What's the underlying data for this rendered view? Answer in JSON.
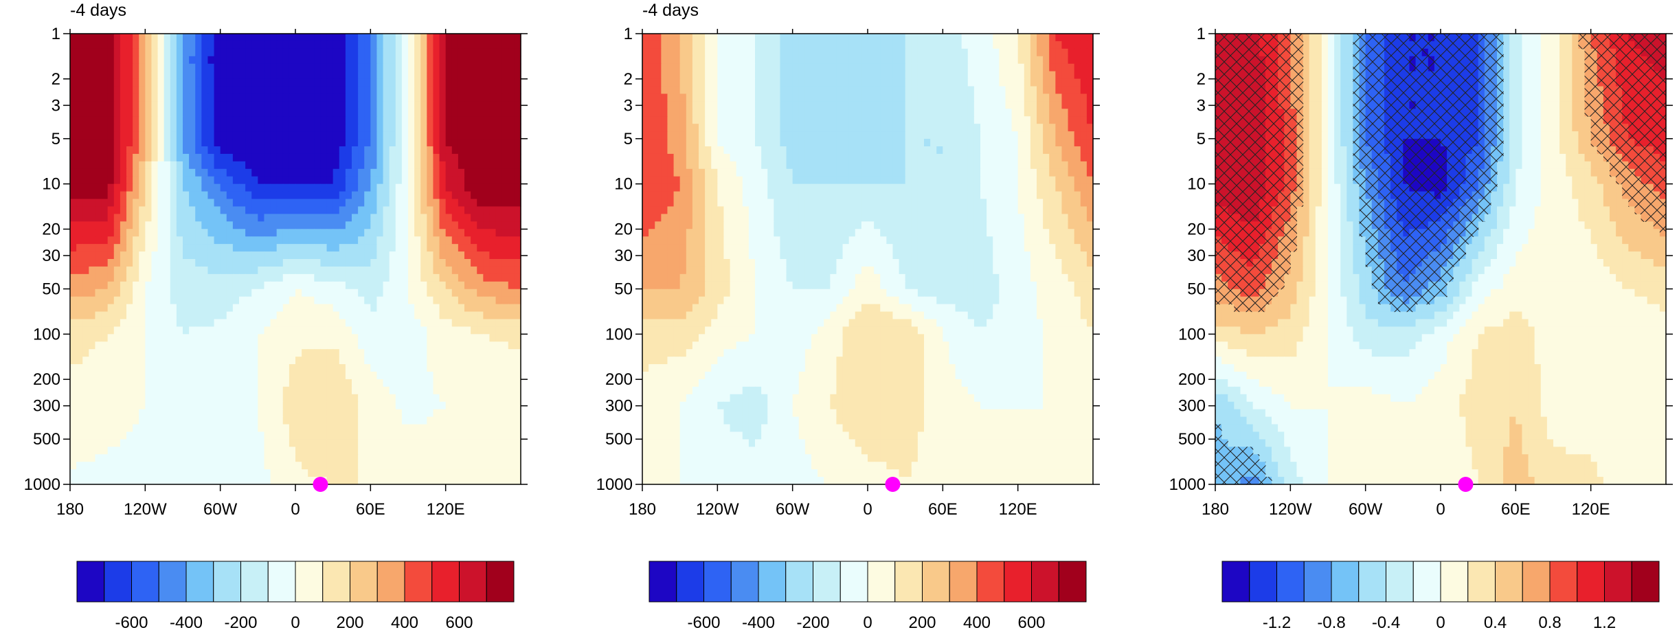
{
  "chart_data": [
    {
      "type": "heatmap",
      "title": "-4 days",
      "x_ticks": [
        "180",
        "120W",
        "60W",
        "0",
        "60E",
        "120E"
      ],
      "x_tick_lons": [
        -180,
        -120,
        -60,
        0,
        60,
        120
      ],
      "xlim": [
        -180,
        180
      ],
      "y_ticks": [
        "1",
        "2",
        "3",
        "5",
        "10",
        "20",
        "30",
        "50",
        "100",
        "200",
        "300",
        "500",
        "1000"
      ],
      "y_tick_values": [
        1,
        2,
        3,
        5,
        10,
        20,
        30,
        50,
        100,
        200,
        300,
        500,
        1000
      ],
      "ylim": [
        1,
        1000
      ],
      "y_scale": "log",
      "y_inverted": true,
      "colorbar_labels": [
        "-600",
        "-400",
        "-200",
        "0",
        "200",
        "400",
        "600"
      ],
      "colorbar_levels": [
        -700,
        -600,
        -500,
        -400,
        -300,
        -200,
        -100,
        0,
        100,
        200,
        300,
        400,
        500,
        600,
        700
      ],
      "colorbar_label_values": [
        -600,
        -400,
        -200,
        0,
        200,
        400,
        600
      ],
      "marker_lon": 20,
      "marker_level": 1000,
      "field_samples": {
        "lons": [
          -180,
          -150,
          -120,
          -90,
          -60,
          -30,
          0,
          30,
          60,
          90,
          120,
          150,
          180
        ],
        "levels": [
          1,
          5,
          10,
          50,
          100,
          300,
          1000
        ],
        "values": [
          [
            800,
            800,
            300,
            -400,
            -800,
            -800,
            -800,
            -800,
            -500,
            0,
            700,
            800,
            800
          ],
          [
            800,
            800,
            300,
            -400,
            -800,
            -800,
            -800,
            -800,
            -500,
            0,
            700,
            800,
            800
          ],
          [
            750,
            750,
            200,
            -300,
            -500,
            -700,
            -700,
            -700,
            -400,
            0,
            600,
            800,
            800
          ],
          [
            350,
            300,
            0,
            -150,
            -150,
            -100,
            0,
            -50,
            -150,
            0,
            200,
            350,
            400
          ],
          [
            150,
            100,
            0,
            -100,
            -80,
            0,
            80,
            80,
            -50,
            -50,
            50,
            100,
            120
          ],
          [
            40,
            30,
            0,
            -100,
            -100,
            0,
            150,
            200,
            50,
            -20,
            0,
            20,
            30
          ],
          [
            -10,
            -20,
            -30,
            -40,
            -50,
            -40,
            80,
            100,
            100,
            50,
            50,
            60,
            80
          ]
        ]
      }
    },
    {
      "type": "heatmap",
      "title": "-4 days",
      "x_ticks": [
        "180",
        "120W",
        "60W",
        "0",
        "60E",
        "120E"
      ],
      "x_tick_lons": [
        -180,
        -120,
        -60,
        0,
        60,
        120
      ],
      "xlim": [
        -180,
        180
      ],
      "y_ticks": [
        "1",
        "2",
        "3",
        "5",
        "10",
        "20",
        "30",
        "50",
        "100",
        "200",
        "300",
        "500",
        "1000"
      ],
      "y_tick_values": [
        1,
        2,
        3,
        5,
        10,
        20,
        30,
        50,
        100,
        200,
        300,
        500,
        1000
      ],
      "ylim": [
        1,
        1000
      ],
      "y_scale": "log",
      "y_inverted": true,
      "colorbar_labels": [
        "-600",
        "-400",
        "-200",
        "0",
        "200",
        "400",
        "600"
      ],
      "colorbar_levels": [
        -700,
        -600,
        -500,
        -400,
        -300,
        -200,
        -100,
        0,
        100,
        200,
        300,
        400,
        500,
        600,
        700
      ],
      "colorbar_label_values": [
        -600,
        -400,
        -200,
        0,
        200,
        400,
        600
      ],
      "marker_lon": 20,
      "marker_level": 1000,
      "field_samples": {
        "lons": [
          -180,
          -150,
          -120,
          -90,
          -60,
          -30,
          0,
          30,
          60,
          90,
          120,
          150,
          180
        ],
        "levels": [
          1,
          5,
          10,
          50,
          100,
          300,
          1000
        ],
        "values": [
          [
            500,
            300,
            0,
            -100,
            -250,
            -250,
            -200,
            -200,
            -150,
            -50,
            100,
            500,
            600
          ],
          [
            500,
            350,
            0,
            -100,
            -250,
            -300,
            -250,
            -200,
            -200,
            -100,
            0,
            300,
            500
          ],
          [
            500,
            400,
            100,
            -50,
            -200,
            -200,
            -200,
            -200,
            -200,
            -100,
            0,
            200,
            400
          ],
          [
            300,
            300,
            150,
            0,
            -100,
            -100,
            80,
            -100,
            -150,
            -150,
            -50,
            50,
            150
          ],
          [
            150,
            150,
            50,
            0,
            -50,
            50,
            200,
            200,
            0,
            -100,
            -50,
            30,
            100
          ],
          [
            50,
            0,
            -100,
            -150,
            0,
            100,
            200,
            150,
            50,
            0,
            0,
            0,
            50
          ],
          [
            0,
            0,
            -50,
            -50,
            -40,
            0,
            50,
            100,
            50,
            0,
            0,
            0,
            0
          ]
        ]
      }
    },
    {
      "type": "heatmap",
      "title": "",
      "x_ticks": [
        "180",
        "120W",
        "60W",
        "0",
        "60E",
        "120E"
      ],
      "x_tick_lons": [
        -180,
        -120,
        -60,
        0,
        60,
        120
      ],
      "xlim": [
        -180,
        180
      ],
      "y_ticks": [
        "1",
        "2",
        "3",
        "5",
        "10",
        "20",
        "30",
        "50",
        "100",
        "200",
        "300",
        "500",
        "1000"
      ],
      "y_tick_values": [
        1,
        2,
        3,
        5,
        10,
        20,
        30,
        50,
        100,
        200,
        300,
        500,
        1000
      ],
      "ylim": [
        1,
        1000
      ],
      "y_scale": "log",
      "y_inverted": true,
      "colorbar_labels": [
        "-1.2",
        "-0.8",
        "-0.4",
        "0",
        "0.4",
        "0.8",
        "1.2"
      ],
      "colorbar_levels": [
        -1.4,
        -1.2,
        -1.0,
        -0.8,
        -0.6,
        -0.4,
        -0.2,
        0,
        0.2,
        0.4,
        0.6,
        0.8,
        1.0,
        1.2,
        1.4
      ],
      "colorbar_label_values": [
        -1.2,
        -0.8,
        -0.4,
        0,
        0.4,
        0.8,
        1.2
      ],
      "hatching": "significance",
      "marker_lon": 20,
      "marker_level": 1000,
      "field_samples": {
        "lons": [
          -180,
          -150,
          -120,
          -90,
          -60,
          -30,
          0,
          30,
          60,
          90,
          120,
          150,
          180
        ],
        "levels": [
          1,
          5,
          10,
          50,
          100,
          300,
          1000
        ],
        "values": [
          [
            1.2,
            1.3,
            0.8,
            0.0,
            -1.0,
            -1.4,
            -1.4,
            -1.2,
            -0.3,
            0.1,
            0.8,
            1.2,
            1.3
          ],
          [
            1.3,
            1.4,
            0.9,
            0.0,
            -1.0,
            -1.4,
            -1.4,
            -1.2,
            -0.3,
            0.1,
            0.6,
            1.0,
            1.1
          ],
          [
            1.3,
            1.4,
            0.9,
            0.0,
            -0.8,
            -1.4,
            -1.5,
            -1.0,
            -0.2,
            0.1,
            0.3,
            0.7,
            0.9
          ],
          [
            0.7,
            0.9,
            0.5,
            0.0,
            -0.5,
            -1.0,
            -0.7,
            -0.1,
            0.1,
            0.1,
            0.1,
            0.2,
            0.3
          ],
          [
            0.3,
            0.4,
            0.3,
            0.0,
            -0.3,
            -0.3,
            -0.1,
            0.2,
            0.3,
            0.1,
            0.0,
            0.0,
            0.1
          ],
          [
            -0.6,
            -0.2,
            0.0,
            0.0,
            0.1,
            0.0,
            0.1,
            0.3,
            0.4,
            0.1,
            0.0,
            0.0,
            0.0
          ],
          [
            -0.7,
            -0.9,
            -0.3,
            0.0,
            0.1,
            0.2,
            0.0,
            0.2,
            0.5,
            0.3,
            0.3,
            0.0,
            0.0
          ]
        ]
      }
    }
  ],
  "colormap": [
    "#1d06c4",
    "#1c3ce8",
    "#2e63f4",
    "#4a8cf2",
    "#74c3f7",
    "#a7e1f7",
    "#c8f0f7",
    "#eafdfd",
    "#fdfbe1",
    "#fbe7b2",
    "#f9c98a",
    "#f7a76c",
    "#f34b3c",
    "#e8202c",
    "#cc122b",
    "#a1001c"
  ],
  "marker_color": "#ff00ff"
}
